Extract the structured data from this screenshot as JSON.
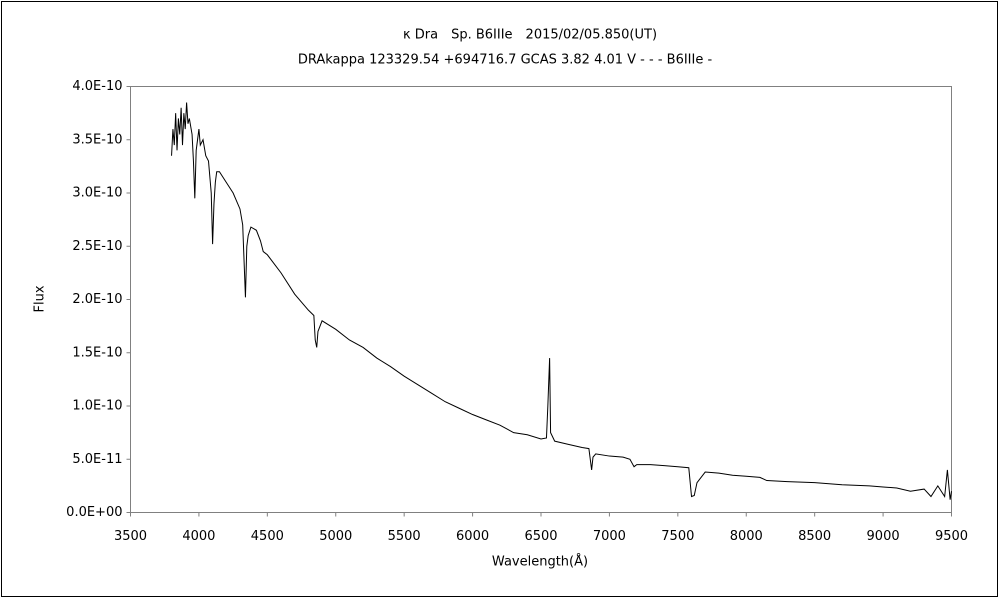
{
  "chart_data": {
    "type": "line",
    "title": "κ Dra　Sp. B6IIIe　2015/02/05.850(UT)",
    "subtitle": "DRAkappa 123329.54 +694716.7 GCAS 3.82 4.01 V - - - B6IIIe -",
    "x_label": "Wavelength(Å)",
    "y_label": "Flux",
    "xlim": [
      3500,
      9500
    ],
    "xticks": [
      3500,
      4000,
      4500,
      5000,
      5500,
      6000,
      6500,
      7000,
      7500,
      8000,
      8500,
      9000,
      9500
    ],
    "ylim": [
      0,
      4e-10
    ],
    "yticks": [
      {
        "value": 0,
        "label": "0.0E+00"
      },
      {
        "value": 5e-11,
        "label": "5.0E-11"
      },
      {
        "value": 1e-10,
        "label": "1.0E-10"
      },
      {
        "value": 1.5e-10,
        "label": "1.5E-10"
      },
      {
        "value": 2e-10,
        "label": "2.0E-10"
      },
      {
        "value": 2.5e-10,
        "label": "2.5E-10"
      },
      {
        "value": 3e-10,
        "label": "3.0E-10"
      },
      {
        "value": 3.5e-10,
        "label": "3.5E-10"
      },
      {
        "value": 4e-10,
        "label": "4.0E-10"
      }
    ],
    "grid": false,
    "series": [
      {
        "color": "#000000",
        "x": [
          3800,
          3810,
          3820,
          3830,
          3840,
          3850,
          3860,
          3870,
          3880,
          3890,
          3900,
          3910,
          3920,
          3930,
          3950,
          3960,
          3970,
          3980,
          3990,
          4000,
          4010,
          4030,
          4050,
          4070,
          4090,
          4100,
          4110,
          4120,
          4130,
          4150,
          4200,
          4250,
          4300,
          4320,
          4340,
          4350,
          4360,
          4380,
          4420,
          4450,
          4470,
          4500,
          4600,
          4700,
          4800,
          4840,
          4850,
          4861,
          4870,
          4900,
          5000,
          5100,
          5200,
          5300,
          5400,
          5500,
          5600,
          5700,
          5800,
          5900,
          6000,
          6100,
          6200,
          6300,
          6400,
          6500,
          6540,
          6550,
          6563,
          6570,
          6600,
          6700,
          6800,
          6850,
          6870,
          6880,
          6900,
          7000,
          7100,
          7150,
          7180,
          7200,
          7300,
          7400,
          7500,
          7580,
          7600,
          7620,
          7640,
          7700,
          7800,
          7900,
          8000,
          8100,
          8150,
          8300,
          8500,
          8700,
          8900,
          9000,
          9100,
          9200,
          9300,
          9350,
          9400,
          9450,
          9470,
          9490,
          9500
        ],
        "values": [
          3.35e-10,
          3.6e-10,
          3.45e-10,
          3.75e-10,
          3.4e-10,
          3.7e-10,
          3.55e-10,
          3.8e-10,
          3.45e-10,
          3.75e-10,
          3.6e-10,
          3.85e-10,
          3.65e-10,
          3.7e-10,
          3.55e-10,
          3.3e-10,
          2.95e-10,
          3.4e-10,
          3.5e-10,
          3.6e-10,
          3.45e-10,
          3.5e-10,
          3.35e-10,
          3.3e-10,
          3e-10,
          2.52e-10,
          2.9e-10,
          3.1e-10,
          3.2e-10,
          3.2e-10,
          3.1e-10,
          3e-10,
          2.85e-10,
          2.7e-10,
          2.02e-10,
          2.5e-10,
          2.6e-10,
          2.68e-10,
          2.65e-10,
          2.55e-10,
          2.45e-10,
          2.42e-10,
          2.25e-10,
          2.05e-10,
          1.9e-10,
          1.85e-10,
          1.62e-10,
          1.55e-10,
          1.7e-10,
          1.8e-10,
          1.72e-10,
          1.62e-10,
          1.55e-10,
          1.45e-10,
          1.37e-10,
          1.28e-10,
          1.2e-10,
          1.12e-10,
          1.04e-10,
          9.8e-11,
          9.2e-11,
          8.7e-11,
          8.2e-11,
          7.5e-11,
          7.3e-11,
          6.9e-11,
          7e-11,
          1e-10,
          1.45e-10,
          7.5e-11,
          6.7e-11,
          6.4e-11,
          6.1e-11,
          6e-11,
          4e-11,
          5.2e-11,
          5.5e-11,
          5.3e-11,
          5.2e-11,
          5e-11,
          4.3e-11,
          4.5e-11,
          4.5e-11,
          4.4e-11,
          4.3e-11,
          4.2e-11,
          1.5e-11,
          1.6e-11,
          2.8e-11,
          3.8e-11,
          3.7e-11,
          3.5e-11,
          3.4e-11,
          3.3e-11,
          3e-11,
          2.9e-11,
          2.8e-11,
          2.6e-11,
          2.5e-11,
          2.4e-11,
          2.3e-11,
          2e-11,
          2.2e-11,
          1.5e-11,
          2.5e-11,
          1.5e-11,
          4e-11,
          1.2e-11,
          2e-11
        ]
      }
    ]
  }
}
